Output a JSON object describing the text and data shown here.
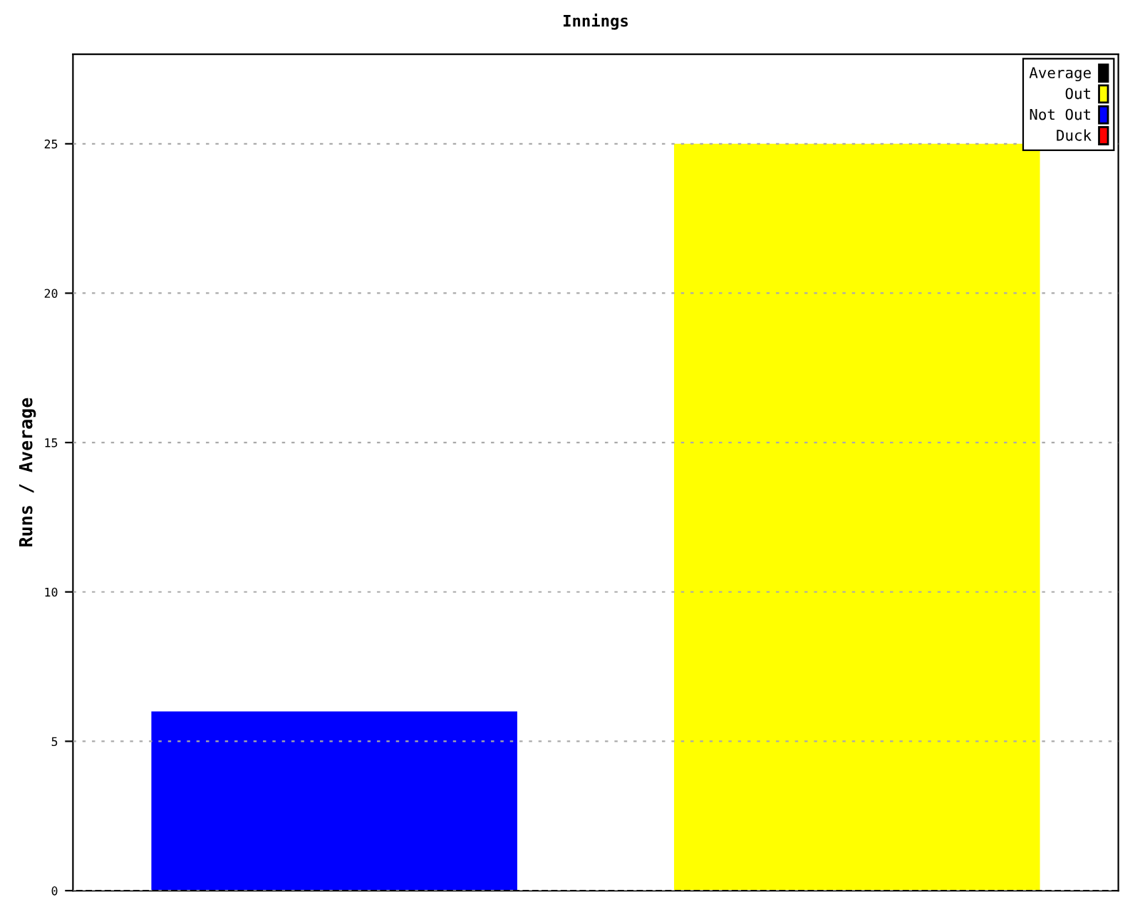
{
  "chart_data": {
    "type": "bar",
    "title": "Innings",
    "ylabel": "Runs / Average",
    "categories": [
      null,
      null
    ],
    "stacked": true,
    "series": [
      {
        "name": "Average",
        "color": "#000000",
        "values": [
          null,
          null
        ]
      },
      {
        "name": "Out",
        "color": "#ffff00",
        "values": [
          null,
          25
        ]
      },
      {
        "name": "Not Out",
        "color": "#0000ff",
        "values": [
          6,
          null
        ]
      },
      {
        "name": "Duck",
        "color": "#ff0000",
        "values": [
          null,
          null
        ]
      }
    ],
    "ylim": [
      0,
      28
    ],
    "yticks": [
      0,
      5,
      10,
      15,
      20,
      25
    ],
    "grid": "y",
    "legend": "top right"
  }
}
